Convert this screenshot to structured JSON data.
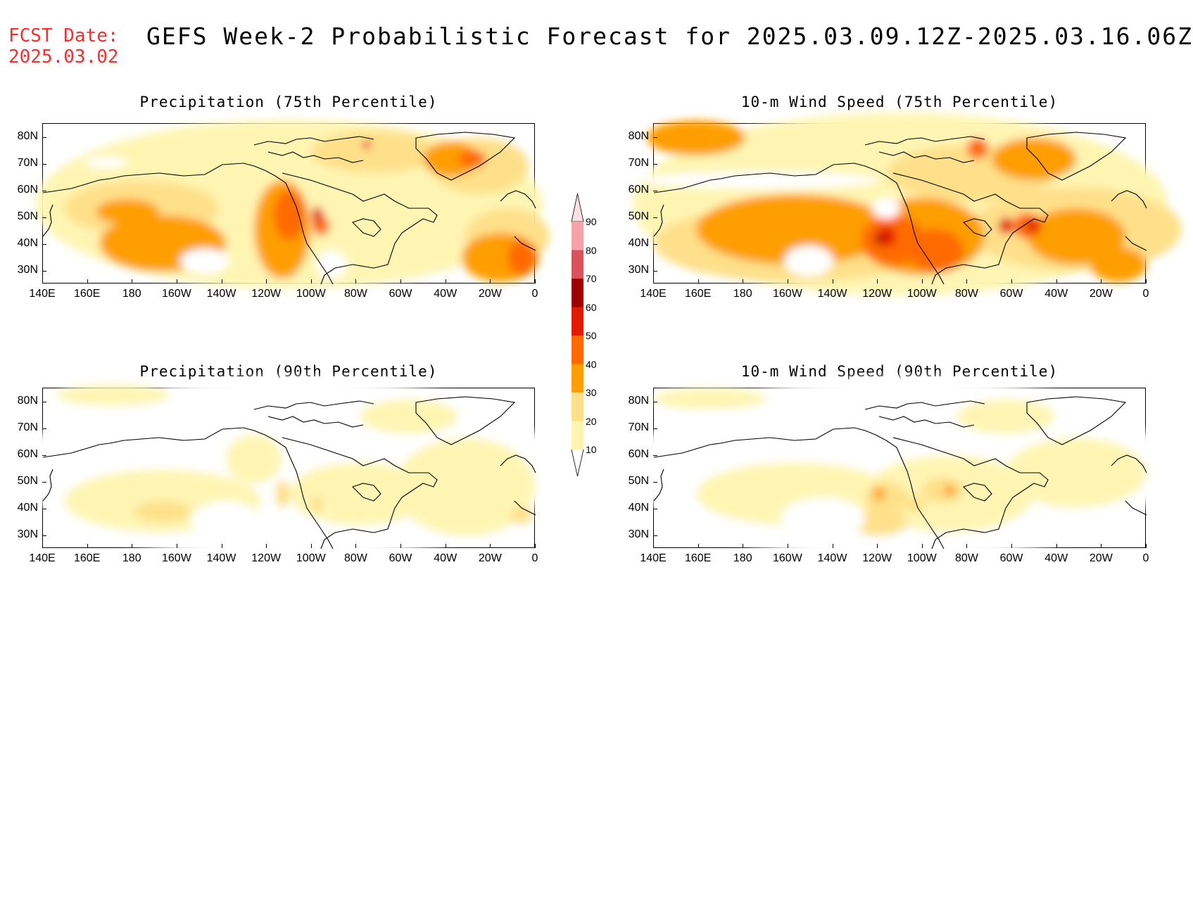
{
  "header": {
    "fcst_line1": "FCST Date:",
    "fcst_line2": "2025.03.02",
    "title": "GEFS Week-2 Probabilistic Forecast for 2025.03.09.12Z-2025.03.16.06Z"
  },
  "axes": {
    "lat_labels": [
      "80N",
      "70N",
      "60N",
      "50N",
      "40N",
      "30N"
    ],
    "lon_labels": [
      "140E",
      "160E",
      "180",
      "160W",
      "140W",
      "120W",
      "100W",
      "80W",
      "60W",
      "40W",
      "20W",
      "0"
    ]
  },
  "panels": [
    {
      "id": "precip75",
      "title": "Precipitation (75th Percentile)"
    },
    {
      "id": "wind75",
      "title": "10-m Wind Speed (75th Percentile)"
    },
    {
      "id": "precip90",
      "title": "Precipitation (90th Percentile)"
    },
    {
      "id": "wind90",
      "title": "10-m Wind Speed (90th Percentile)"
    }
  ],
  "colorbar": {
    "levels": [
      "10",
      "20",
      "30",
      "40",
      "50",
      "60",
      "70",
      "80",
      "90"
    ],
    "colors": [
      "#fff5b3",
      "#ffe08a",
      "#ff9e00",
      "#ff6a00",
      "#e01b00",
      "#9c0000",
      "#d9535d",
      "#f4a3a8",
      "#fde0e2"
    ]
  }
}
